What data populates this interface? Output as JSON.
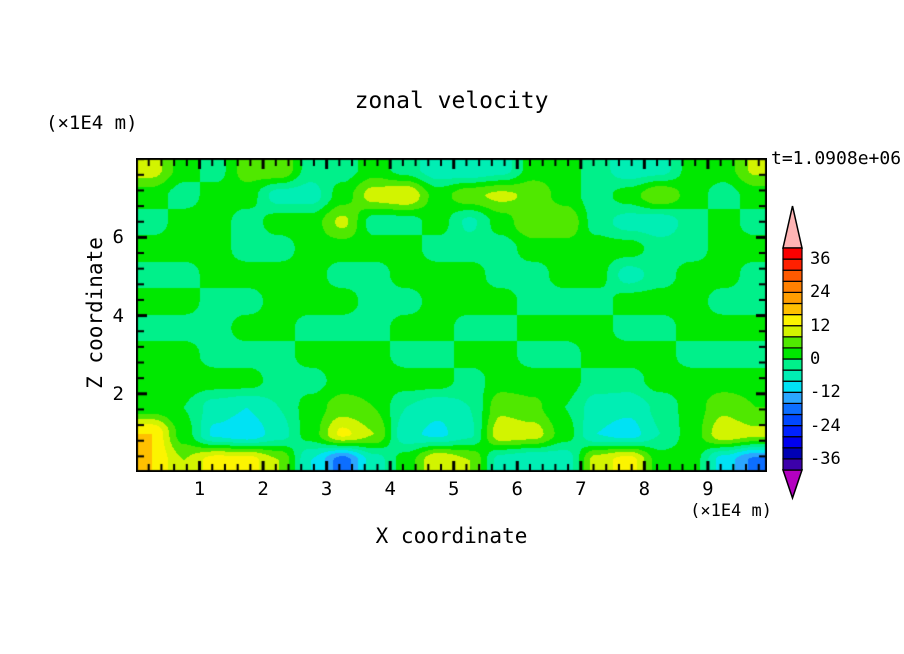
{
  "figure": {
    "title": "zonal velocity",
    "time_label": "t=1.0908e+06",
    "x_axis": {
      "label": "X coordinate",
      "units_label": "(×1E4 m)",
      "major_ticks": [
        1,
        2,
        3,
        4,
        5,
        6,
        7,
        8,
        9
      ],
      "minor_step": 0.2,
      "range": [
        0,
        9.93
      ]
    },
    "y_axis": {
      "label": "Z coordinate",
      "units_label": "(×1E4 m)",
      "major_ticks": [
        2,
        4,
        6
      ],
      "minor_step": 0.4,
      "range": [
        0,
        8.03
      ]
    },
    "colorbar": {
      "tick_labels": [
        "36",
        "24",
        "12",
        "0",
        "-12",
        "-24",
        "-36"
      ],
      "tick_values": [
        36,
        24,
        12,
        0,
        -12,
        -24,
        -36
      ],
      "level_min": -40,
      "level_max": 40,
      "level_step": 4,
      "band_colors_ascending": [
        "#3c00aa",
        "#0000b4",
        "#0000ee",
        "#0022ff",
        "#0048ff",
        "#0c6eff",
        "#2ba6ff",
        "#00e2f4",
        "#00eeb4",
        "#00f08a",
        "#00e800",
        "#50e800",
        "#d2f400",
        "#fcf400",
        "#ffc000",
        "#ff9e00",
        "#ff8000",
        "#ff5a00",
        "#ff2000",
        "#fa0000"
      ],
      "over_color": "#ffb4b4",
      "under_color": "#b400c0",
      "frame_color": "#000000"
    }
  },
  "chart_data": {
    "type": "heatmap",
    "title": "zonal velocity",
    "xlabel": "X coordinate",
    "ylabel": "Z coordinate",
    "time": "t=1.0908e+06",
    "units_note": "x and z in units of 1E4 m; filled contour bands of zonal velocity every 4 units from -40 to 40",
    "xlim": [
      0,
      9.93
    ],
    "ylim": [
      0,
      8.03
    ],
    "x": [
      0.25,
      0.75,
      1.25,
      1.75,
      2.25,
      2.75,
      3.25,
      3.75,
      4.25,
      4.75,
      5.25,
      5.75,
      6.25,
      6.75,
      7.25,
      7.75,
      8.25,
      8.75,
      9.25,
      9.75
    ],
    "z": [
      7.75,
      7.07,
      6.4,
      5.72,
      5.04,
      4.36,
      3.69,
      3.01,
      2.33,
      1.66,
      0.98,
      0.3
    ],
    "values": [
      [
        10,
        2,
        -2,
        6,
        8,
        -2,
        -2,
        2,
        -2,
        -7,
        -8,
        -6,
        2,
        2,
        -2,
        -7,
        -6,
        2,
        2,
        9
      ],
      [
        2,
        -2,
        2,
        2,
        -6,
        -6,
        2,
        10,
        12,
        2,
        7,
        9,
        7,
        2,
        -2,
        2,
        8,
        2,
        -2,
        2
      ],
      [
        -2,
        2,
        2,
        -2,
        2,
        2,
        9,
        -2,
        -2,
        2,
        -5,
        2,
        8,
        8,
        -2,
        -6,
        -7,
        -2,
        2,
        -2
      ],
      [
        2,
        2,
        2,
        -2,
        -2,
        2,
        2,
        2,
        2,
        -2,
        -2,
        -2,
        2,
        2,
        2,
        2,
        -2,
        -2,
        2,
        2
      ],
      [
        -2,
        -2,
        2,
        2,
        2,
        2,
        -2,
        -2,
        2,
        2,
        2,
        -2,
        -2,
        2,
        2,
        -6,
        -2,
        2,
        2,
        -2
      ],
      [
        2,
        2,
        -2,
        -2,
        2,
        2,
        2,
        -2,
        -2,
        2,
        2,
        2,
        -2,
        -2,
        -2,
        2,
        2,
        2,
        -2,
        -2
      ],
      [
        -2,
        -2,
        -2,
        2,
        2,
        -2,
        -2,
        -2,
        2,
        2,
        -2,
        -2,
        2,
        2,
        2,
        -2,
        -2,
        2,
        2,
        2
      ],
      [
        2,
        2,
        -2,
        -2,
        -2,
        2,
        2,
        2,
        -2,
        -2,
        2,
        2,
        -2,
        -2,
        2,
        2,
        2,
        -2,
        -2,
        -2
      ],
      [
        2,
        2,
        2,
        2,
        -2,
        -2,
        2,
        2,
        2,
        2,
        -2,
        2,
        2,
        2,
        -2,
        -2,
        2,
        2,
        2,
        2
      ],
      [
        2,
        0,
        -6,
        -8,
        -4,
        2,
        6,
        4,
        -4,
        -7,
        -4,
        7,
        5,
        0,
        -6,
        -7,
        -3,
        2,
        7,
        4
      ],
      [
        16,
        2,
        -9,
        -11,
        -6,
        2,
        13,
        8,
        -7,
        -9,
        -5,
        11,
        10,
        2,
        -8,
        -10,
        -4,
        2,
        11,
        9
      ],
      [
        16,
        8,
        14,
        14,
        8,
        -8,
        -18,
        -6,
        2,
        12,
        8,
        -6,
        -8,
        -7,
        10,
        14,
        2,
        2,
        -10,
        -17
      ]
    ]
  }
}
